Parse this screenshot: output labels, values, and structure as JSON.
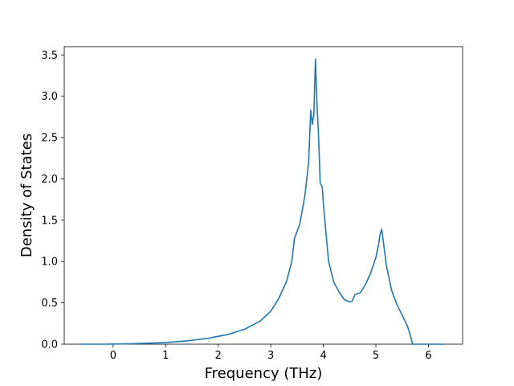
{
  "chart_data": {
    "type": "line",
    "title": "",
    "xlabel": "Frequency (THz)",
    "ylabel": "Density of States",
    "xlim": [
      -0.93,
      6.65
    ],
    "ylim": [
      0.0,
      3.6
    ],
    "xticks": [
      0,
      1,
      2,
      3,
      4,
      5,
      6
    ],
    "xtick_labels": [
      "0",
      "1",
      "2",
      "3",
      "4",
      "5",
      "6"
    ],
    "yticks": [
      0.0,
      0.5,
      1.0,
      1.5,
      2.0,
      2.5,
      3.0,
      3.5
    ],
    "ytick_labels": [
      "0.0",
      "0.5",
      "1.0",
      "1.5",
      "2.0",
      "2.5",
      "3.0",
      "3.5"
    ],
    "grid": false,
    "line_color": "#1f77b4",
    "series": [
      {
        "x": [
          -0.6,
          -0.2,
          0.0,
          0.3,
          0.6,
          1.0,
          1.4,
          1.8,
          2.2,
          2.5,
          2.8,
          3.0,
          3.15,
          3.3,
          3.4,
          3.45,
          3.48,
          3.55,
          3.65,
          3.72,
          3.76,
          3.79,
          3.82,
          3.85,
          3.88,
          3.91,
          3.94,
          3.98,
          4.0,
          4.05,
          4.1,
          4.2,
          4.3,
          4.4,
          4.5,
          4.55,
          4.6,
          4.7,
          4.8,
          4.9,
          5.0,
          5.05,
          5.08,
          5.11,
          5.14,
          5.2,
          5.3,
          5.4,
          5.5,
          5.6,
          5.65,
          5.7,
          5.8,
          6.28
        ],
        "y": [
          0.0,
          0.0,
          0.002,
          0.005,
          0.01,
          0.02,
          0.04,
          0.07,
          0.12,
          0.18,
          0.28,
          0.4,
          0.55,
          0.76,
          1.0,
          1.28,
          1.33,
          1.45,
          1.8,
          2.2,
          2.83,
          2.66,
          2.78,
          3.45,
          2.9,
          2.5,
          1.95,
          1.9,
          1.7,
          1.35,
          1.0,
          0.75,
          0.63,
          0.54,
          0.51,
          0.52,
          0.6,
          0.62,
          0.72,
          0.86,
          1.05,
          1.2,
          1.33,
          1.39,
          1.25,
          0.95,
          0.65,
          0.48,
          0.35,
          0.22,
          0.12,
          0.0,
          0.0,
          0.0
        ]
      }
    ]
  }
}
